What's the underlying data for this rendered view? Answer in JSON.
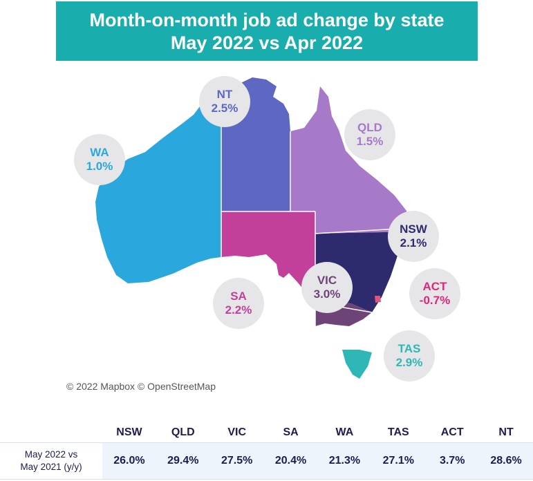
{
  "title": {
    "line1": "Month-on-month job ad change by state",
    "line2": "May 2022 vs Apr 2022"
  },
  "states": [
    {
      "id": "wa",
      "name": "WA",
      "change": "1.0%",
      "fill": "#2aa8de",
      "label_color": "#2aa8de"
    },
    {
      "id": "nt",
      "name": "NT",
      "change": "2.5%",
      "fill": "#5e67c2",
      "label_color": "#5e67c2"
    },
    {
      "id": "qld",
      "name": "QLD",
      "change": "1.5%",
      "fill": "#a679c9",
      "label_color": "#a679c9"
    },
    {
      "id": "sa",
      "name": "SA",
      "change": "2.2%",
      "fill": "#c2409a",
      "label_color": "#c2409a"
    },
    {
      "id": "nsw",
      "name": "NSW",
      "change": "2.1%",
      "fill": "#2e2a6e",
      "label_color": "#2e2a6e"
    },
    {
      "id": "vic",
      "name": "VIC",
      "change": "3.0%",
      "fill": "#6e4478",
      "label_color": "#6e4478"
    },
    {
      "id": "act",
      "name": "ACT",
      "change": "-0.7%",
      "fill": "#e0557a",
      "label_color": "#e0267a"
    },
    {
      "id": "tas",
      "name": "TAS",
      "change": "2.9%",
      "fill": "#2fb6b6",
      "label_color": "#2fb6b6"
    }
  ],
  "attribution": "© 2022 Mapbox © OpenStreetMap",
  "table": {
    "row_label_line1": "May 2022 vs",
    "row_label_line2": "May 2021 (y/y)",
    "columns": [
      "NSW",
      "QLD",
      "VIC",
      "SA",
      "WA",
      "TAS",
      "ACT",
      "NT"
    ],
    "values": [
      "26.0%",
      "29.4%",
      "27.5%",
      "20.4%",
      "21.3%",
      "27.1%",
      "3.7%",
      "28.6%"
    ]
  }
}
